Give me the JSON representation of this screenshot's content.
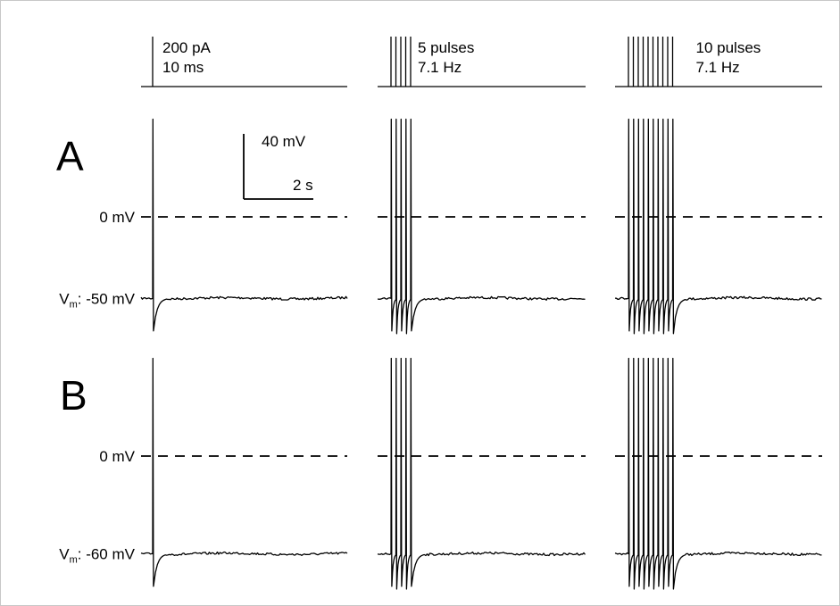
{
  "chart_data": {
    "type": "line",
    "description_note": "",
    "stimuli": [
      {
        "id": "single",
        "line1": "200 pA",
        "line2": "10 ms",
        "pulse_count": 1,
        "frequency_hz": null
      },
      {
        "id": "train5",
        "line1": "5 pulses",
        "line2": "7.1 Hz",
        "pulse_count": 5,
        "frequency_hz": 7.1
      },
      {
        "id": "train10",
        "line1": "10 pulses",
        "line2": "7.1 Hz",
        "pulse_count": 10,
        "frequency_hz": 7.1
      }
    ],
    "rows": [
      {
        "panel": "A",
        "baseline_label_sym": "V",
        "baseline_label_sub": "m",
        "baseline_label_rest": ": -50 mV",
        "baseline_mv": -50,
        "zero_label": "0 mV",
        "zero_mv": 0,
        "spike_peak_mv": 60,
        "trough_mv": -70
      },
      {
        "panel": "B",
        "baseline_label_sym": "V",
        "baseline_label_sub": "m",
        "baseline_label_rest": ": -60 mV",
        "baseline_mv": -60,
        "zero_label": "0 mV",
        "zero_mv": 0,
        "spike_peak_mv": 60,
        "trough_mv": -80
      }
    ],
    "scale_bar": {
      "voltage_label": "40 mV",
      "voltage_mv": 40,
      "time_label": "2 s",
      "time_s": 2
    }
  }
}
